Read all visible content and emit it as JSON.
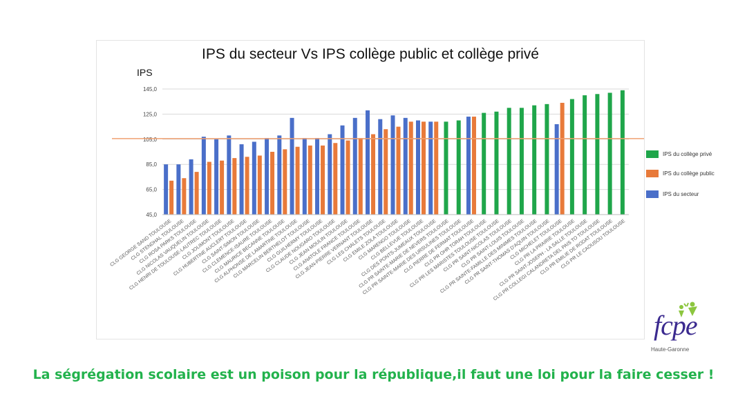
{
  "chart_data": {
    "type": "bar",
    "title": "IPS du secteur Vs IPS collège public et collège privé",
    "ylabel": "IPS",
    "ylim": [
      45,
      145
    ],
    "yticks": [
      "45,0",
      "65,0",
      "85,0",
      "105,0",
      "125,0",
      "145,0"
    ],
    "ytick_values": [
      45,
      65,
      85,
      105,
      125,
      145
    ],
    "reference_line": 105.5,
    "legend_position": "right",
    "categories": [
      "CLG GEORGE SAND TOULOUSE",
      "CLG STENDHAL TOULOUSE",
      "CLG ROSA PARKS TOULOUSE",
      "CLG NICOLAS VAUQUELIN TOULOUSE",
      "CLG HENRI DE TOULOUSE-LAUTREC TOULOUSE",
      "CLG JOLIMONT TOULOUSE",
      "CLG HUBERTINE AUCLERT TOULOUSE",
      "CLG SAINT-SIMON TOULOUSE",
      "CLG CLEMENCE-ISAURE TOULOUSE",
      "CLG MAURICE BECANNE TOULOUSE",
      "CLG ALPHONSE DE LAMARTINE TOULOUSE",
      "CLG MARCELIN BERTHELOT TOULOUSE",
      "CLG GUILHERMY TOULOUSE",
      "CLG CLAUDE NOUGARO TOULOUSE",
      "CLG JEAN MOULIN TOULOUSE",
      "CLG ANATOLE FRANCE TOULOUSE",
      "CLG JEAN-PIERRE VERNANT TOULOUSE",
      "CLG LES CHALETS TOULOUSE",
      "CLG EMILE ZOLA TOULOUSE",
      "CLG MARENGO TOULOUSE",
      "CLG BELLEVUE TOULOUSE",
      "CLG DES PONTS-JUMEAUX TOULOUSE",
      "CLG PR SAINTE-MARIE DE NEVERS TOULOUSE",
      "CLG PR SAINTE-MARIE DES URSULINES TOULOUSE",
      "CLG PIERRE DE FERMAT TOULOUSE",
      "CLG PR OHR TORAH TOULOUSE",
      "CLG PR LES MARISTES TOULOUSE TOULOUSE",
      "CLG PR SAINT-NICOLAS TOULOUSE",
      "CLG PR SAINT-LOUIS TOULOUSE",
      "CLG PR SAINTE-FAMILLE DES MINIMES TOULOUSE",
      "CLG PR SAINT-THOMAS D'AQUIN TOULOUSE",
      "CLG MICHELET TOULOUSE",
      "CLG PR LA PRAIRIE TOULOUSE",
      "CLG PR SAINT-JOSEPH - LA SALLE TOULOUSE",
      "CLG PR COLLEGI CALANDRETA DEL PAIS TO TOULOUSE",
      "CLG PR EMILIE DE RODAT TOULOUSE",
      "CLG PR LE CAOUSOU TOULOUSE"
    ],
    "series": [
      {
        "name": "IPS du collège privé",
        "color": "#1fa64a",
        "values": [
          null,
          null,
          null,
          null,
          null,
          null,
          null,
          null,
          null,
          null,
          null,
          null,
          null,
          null,
          null,
          null,
          null,
          null,
          null,
          null,
          null,
          null,
          119,
          120,
          null,
          126,
          127,
          130,
          130,
          132,
          133,
          null,
          137,
          140,
          141,
          142,
          144
        ]
      },
      {
        "name": "IPS du collège public",
        "color": "#e87a3a",
        "values": [
          72,
          74,
          79,
          87,
          88,
          90,
          91,
          92,
          95,
          97,
          99,
          100,
          100,
          102,
          104,
          106,
          109,
          113,
          115,
          119,
          119,
          119,
          null,
          null,
          123,
          null,
          null,
          null,
          null,
          null,
          null,
          134,
          null,
          null,
          null,
          null,
          null
        ]
      },
      {
        "name": "IPS du secteur",
        "color": "#4a6fc9",
        "values": [
          85,
          85,
          89,
          107,
          105,
          108,
          101,
          103,
          106,
          108,
          122,
          106,
          106,
          109,
          116,
          122,
          128,
          121,
          124,
          122,
          120,
          119,
          null,
          null,
          123,
          null,
          null,
          null,
          null,
          null,
          null,
          117,
          null,
          null,
          null,
          null,
          null
        ]
      }
    ]
  },
  "legend": {
    "items": [
      {
        "label": "IPS du collège privé",
        "color": "#1fa64a"
      },
      {
        "label": "IPS du collège public",
        "color": "#e87a3a"
      },
      {
        "label": "IPS du secteur",
        "color": "#4a6fc9"
      }
    ]
  },
  "logo": {
    "word": "fcpe",
    "subtitle": "Haute-Garonne"
  },
  "caption": "La ségrégation scolaire est un poison pour la république,il faut une loi pour la faire cesser !"
}
